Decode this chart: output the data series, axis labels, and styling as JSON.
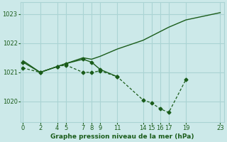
{
  "bg_color": "#cce9e9",
  "grid_color": "#aad4d4",
  "line_color": "#1a5c1a",
  "title": "Graphe pression niveau de la mer (hPa)",
  "title_color": "#1a5c1a",
  "xticks": [
    0,
    2,
    4,
    5,
    7,
    8,
    9,
    11,
    14,
    15,
    16,
    17,
    19,
    23
  ],
  "yticks": [
    1020,
    1021,
    1022,
    1023
  ],
  "ylim": [
    1019.3,
    1023.4
  ],
  "xlim": [
    -0.3,
    23.5
  ],
  "line1_x": [
    0,
    2,
    4,
    5,
    7,
    8,
    9,
    11,
    14,
    15,
    16,
    17,
    19,
    23
  ],
  "line1_y": [
    1021.4,
    1021.0,
    1021.2,
    1021.3,
    1021.5,
    1021.45,
    1021.55,
    1021.8,
    1022.1,
    1022.25,
    1022.4,
    1022.55,
    1022.8,
    1023.05
  ],
  "line2_x": [
    0,
    2,
    4,
    5,
    7,
    8,
    9,
    11,
    14,
    15,
    16,
    17,
    19
  ],
  "line2_y": [
    1021.15,
    1021.0,
    1021.2,
    1021.25,
    1021.0,
    1021.0,
    1021.05,
    1020.85,
    1020.05,
    1019.95,
    1019.75,
    1019.62,
    1020.75
  ],
  "line3_x": [
    0,
    2,
    4,
    5,
    7,
    8,
    9,
    11
  ],
  "line3_y": [
    1021.35,
    1021.0,
    1021.2,
    1021.3,
    1021.45,
    1021.35,
    1021.1,
    1020.85
  ]
}
